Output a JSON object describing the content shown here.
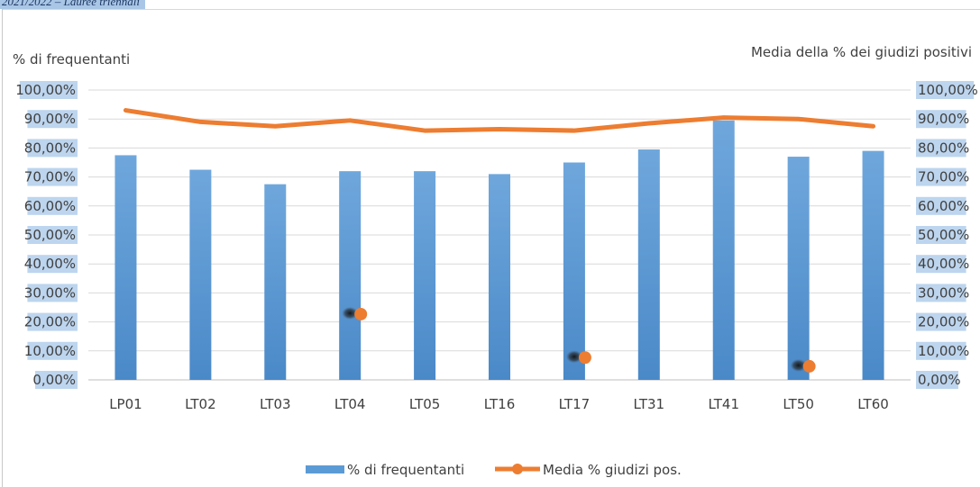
{
  "header": {
    "title": "2021/2022 – Lauree triennali"
  },
  "chart_data": {
    "type": "bar",
    "categories": [
      "LP01",
      "LT02",
      "LT03",
      "LT04",
      "LT05",
      "LT16",
      "LT17",
      "LT31",
      "LT41",
      "LT50",
      "LT60"
    ],
    "series": [
      {
        "name": "% di frequentanti",
        "type": "bar",
        "axis": "left",
        "values": [
          77.5,
          72.5,
          67.5,
          72.0,
          72.0,
          71.0,
          75.0,
          79.5,
          89.5,
          77.0,
          79.0
        ],
        "color": "#5b9bd5"
      },
      {
        "name": "Media % giudizi pos.",
        "type": "line",
        "axis": "right",
        "values": [
          93.0,
          89.0,
          87.5,
          89.5,
          86.0,
          86.5,
          86.0,
          88.5,
          90.5,
          90.0,
          87.5
        ],
        "color": "#ed7d31"
      }
    ],
    "ylabel": "% di frequentanti",
    "y2label": "Media della % dei giudizi positivi",
    "ylim": [
      0,
      100
    ],
    "y2lim": [
      0,
      100
    ],
    "yticks": [
      "0,00%",
      "10,00%",
      "20,00%",
      "30,00%",
      "40,00%",
      "50,00%",
      "60,00%",
      "70,00%",
      "80,00%",
      "90,00%",
      "100,00%"
    ],
    "y2ticks": [
      "0,00%",
      "10,00%",
      "20,00%",
      "30,00%",
      "40,00%",
      "50,00%",
      "60,00%",
      "70,00%",
      "80,00%",
      "90,00%",
      "100,00%"
    ],
    "grid": true,
    "legend_position": "bottom",
    "stray_markers": [
      {
        "category": "LT04",
        "value": 23
      },
      {
        "category": "LT17",
        "value": 8
      },
      {
        "category": "LT50",
        "value": 5
      }
    ]
  }
}
